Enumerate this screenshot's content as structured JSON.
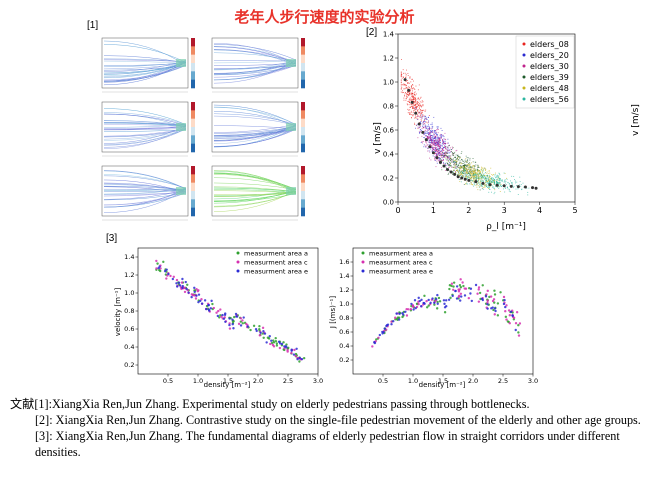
{
  "slide": {
    "title": "老年人步行速度的实验分析"
  },
  "figure_tags": [
    "[1]",
    "[2]",
    "[3]"
  ],
  "chart_data": [
    {
      "type": "heatmap",
      "panel": "[1]",
      "description_grid": "3 rows x 2 columns of trajectory plots colored by speed with colorbars",
      "subplots": 6,
      "colorbar_range": [
        0,
        1.4
      ]
    },
    {
      "type": "scatter",
      "panel": "[2]",
      "xlabel": "ρ_l [m⁻¹]",
      "ylabel": "v [m/s]",
      "ylabel_right": "v [m/s]",
      "xlim": [
        0,
        5
      ],
      "ylim": [
        0,
        1.4
      ],
      "xticks": [
        0,
        1,
        2,
        3,
        4,
        5
      ],
      "yticks": [
        0.0,
        0.2,
        0.4,
        0.6,
        0.8,
        1.0,
        1.2,
        1.4
      ],
      "legend_position": "top-right",
      "series": [
        {
          "name": "elders_08",
          "color": "#e8241f",
          "center": [
            0.4,
            0.95
          ],
          "spread": [
            0.35,
            0.25
          ]
        },
        {
          "name": "elders_20",
          "color": "#2a2ad0",
          "center": [
            1.0,
            0.55
          ],
          "spread": [
            0.45,
            0.25
          ]
        },
        {
          "name": "elders_30",
          "color": "#c0248c",
          "center": [
            1.1,
            0.45
          ],
          "spread": [
            0.5,
            0.22
          ]
        },
        {
          "name": "elders_39",
          "color": "#1e5a2a",
          "center": [
            1.8,
            0.32
          ],
          "spread": [
            0.6,
            0.18
          ]
        },
        {
          "name": "elders_48",
          "color": "#c8b61c",
          "center": [
            2.2,
            0.22
          ],
          "spread": [
            0.7,
            0.15
          ]
        },
        {
          "name": "elders_56",
          "color": "#2bb6a0",
          "center": [
            2.6,
            0.15
          ],
          "spread": [
            0.9,
            0.12
          ]
        }
      ],
      "mean_curve": {
        "x": [
          0.2,
          0.3,
          0.4,
          0.5,
          0.6,
          0.7,
          0.8,
          0.9,
          1.0,
          1.1,
          1.2,
          1.3,
          1.4,
          1.5,
          1.6,
          1.7,
          1.8,
          1.9,
          2.0,
          2.2,
          2.4,
          2.6,
          2.8,
          3.0,
          3.2,
          3.4,
          3.6,
          3.8,
          3.9
        ],
        "y": [
          1.02,
          0.93,
          0.83,
          0.74,
          0.65,
          0.58,
          0.52,
          0.46,
          0.41,
          0.37,
          0.33,
          0.3,
          0.27,
          0.25,
          0.23,
          0.21,
          0.2,
          0.19,
          0.18,
          0.17,
          0.155,
          0.145,
          0.14,
          0.135,
          0.13,
          0.128,
          0.125,
          0.12,
          0.115
        ]
      }
    },
    {
      "type": "scatter",
      "panel": "[3] left",
      "xlabel": "density [m⁻²]",
      "ylabel": "velocity [m⁻¹]",
      "xlim": [
        0,
        3.0
      ],
      "ylim": [
        0.1,
        1.5
      ],
      "xticks": [
        0.5,
        1.0,
        1.5,
        2.0,
        2.5,
        3.0
      ],
      "yticks": [
        0.2,
        0.4,
        0.6,
        0.8,
        1.0,
        1.2,
        1.4
      ],
      "legend_position": "top-right",
      "series": [
        {
          "name": "measurment area a",
          "color": "#2ea02e"
        },
        {
          "name": "measurment area c",
          "color": "#d62fb0"
        },
        {
          "name": "measurment area e",
          "color": "#2b2bd4"
        }
      ]
    },
    {
      "type": "scatter",
      "panel": "[3] right",
      "xlabel": "density [m⁻²]",
      "ylabel": "J [(ms)⁻¹]",
      "xlim": [
        0,
        3.0
      ],
      "ylim": [
        0,
        1.8
      ],
      "xticks": [
        0.5,
        1.0,
        1.5,
        2.0,
        2.5,
        3.0
      ],
      "yticks": [
        0.2,
        0.4,
        0.6,
        0.8,
        1.0,
        1.2,
        1.4,
        1.6
      ],
      "legend_position": "top-left",
      "series": [
        {
          "name": "measurment area a",
          "color": "#2ea02e"
        },
        {
          "name": "measurment area c",
          "color": "#d62fb0"
        },
        {
          "name": "measurment area e",
          "color": "#2b2bd4"
        }
      ]
    }
  ],
  "references": {
    "prefix": "文献",
    "items": [
      {
        "tag": "[1]:",
        "text": "XiangXia Ren,Jun Zhang. Experimental study on elderly pedestrians passing through  bottlenecks."
      },
      {
        "tag": "[2]:",
        "text": "XiangXia Ren,Jun Zhang. Contrastive study on the single-file pedestrian movement of the elderly and other age groups."
      },
      {
        "tag": "[3]:",
        "text": "XiangXia Ren,Jun Zhang. The fundamental diagrams of elderly pedestrian flow in straight corridors under different densities."
      }
    ]
  }
}
